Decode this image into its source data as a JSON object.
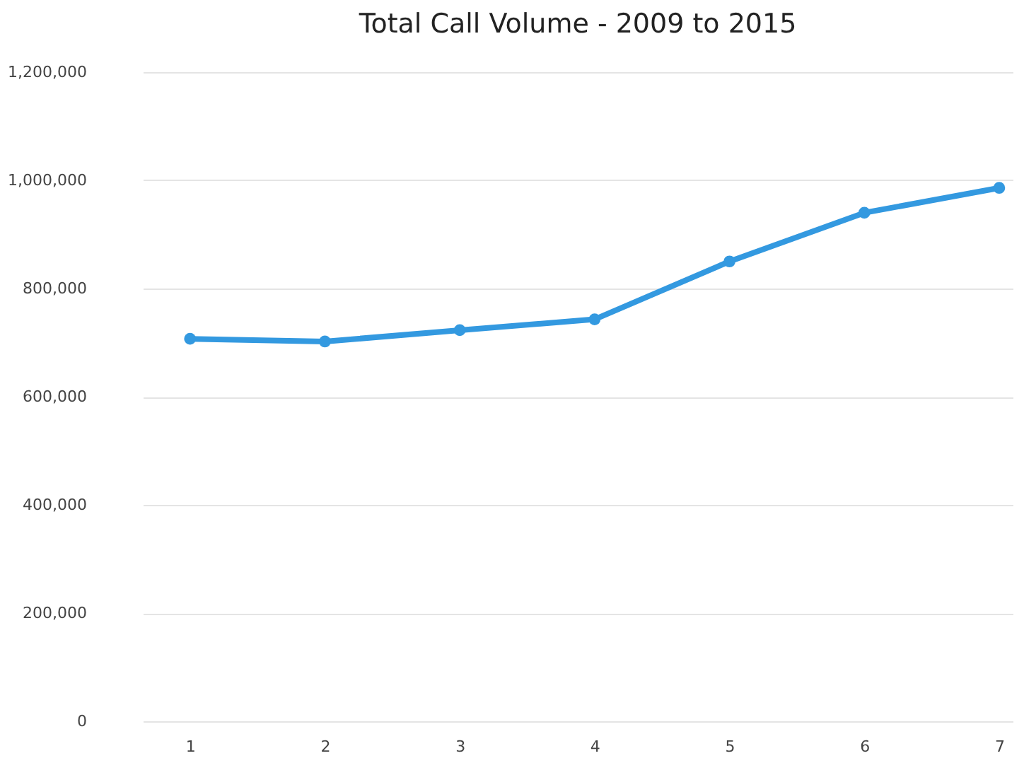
{
  "chart_data": {
    "type": "line",
    "title": "Total Call Volume - 2009 to 2015",
    "categories": [
      "1",
      "2",
      "3",
      "4",
      "5",
      "6",
      "7"
    ],
    "series": [
      {
        "color": "#3399e0",
        "values": [
          707000,
          702000,
          723000,
          743000,
          850000,
          940000,
          986000
        ]
      }
    ],
    "ylim": [
      0,
      1200000
    ],
    "yticks": [
      0,
      {
        "value": 200000,
        "label": "200,000"
      },
      {
        "value": 400000,
        "label": "400,000"
      },
      {
        "value": 600000,
        "label": "600,000"
      },
      {
        "value": 800000,
        "label": "800,000"
      },
      {
        "value": 1000000,
        "label": "1,000,000"
      },
      {
        "value": 1200000,
        "label": "1,200,000"
      }
    ],
    "grid": "y",
    "marker": "circle",
    "line_style": "solid"
  }
}
